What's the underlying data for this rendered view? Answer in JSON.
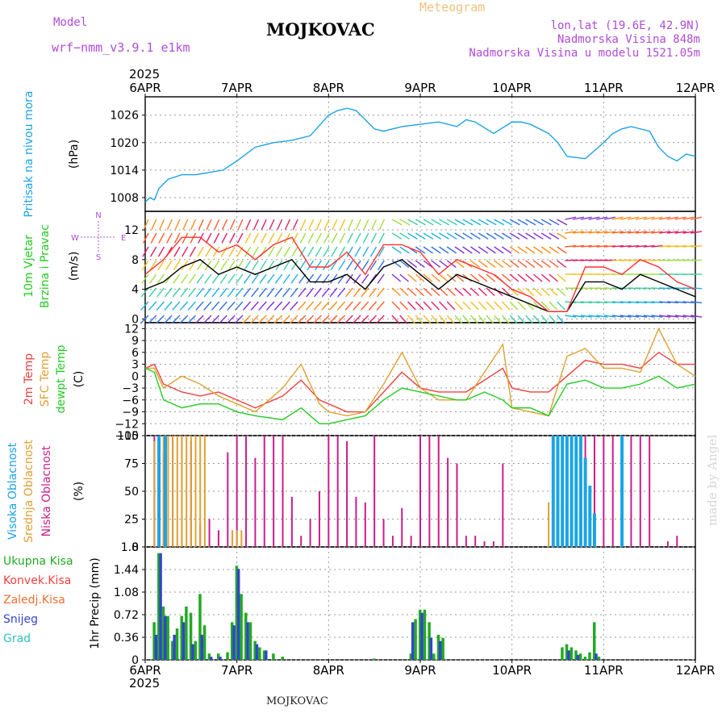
{
  "header": {
    "model_label": "Model",
    "model_name": "wrf−nmm_v3.9.1  e1km",
    "station": "MOJKOVAC",
    "meteogram": "Meteogram",
    "lonlat": "lon,lat (19.6E, 42.9N)",
    "elevation": "Nadmorska Visina 848m",
    "model_elevation": "Nadmorska Visina u modelu 1521.05m",
    "year_top": "2025",
    "year_bottom": "2025",
    "footer_station": "MOJKOVAC",
    "credit": "made by Angel"
  },
  "x_axis": {
    "labels": [
      "6APR",
      "7APR",
      "8APR",
      "9APR",
      "10APR",
      "11APR",
      "12APR"
    ]
  },
  "colors": {
    "pressure": "#1ba3e6",
    "temp2m": "#f04040",
    "sfc_temp": "#e0a030",
    "dewpt": "#22cc22",
    "high_cloud": "#1ba3e6",
    "mid_cloud": "#e0a030",
    "low_cloud": "#cc1c8c",
    "precip_total": "#22aa22",
    "snow": "#3344cc",
    "wind_speed": "#000000",
    "gust": "#ff3030"
  },
  "chart_data": [
    {
      "type": "line",
      "panel": "pressure",
      "ylabel_main": "Pritisak na nivou mora",
      "ylabel_unit": "(hPa)",
      "yticks": [
        "1008",
        "1014",
        "1020",
        "1026"
      ],
      "ylim": [
        1005,
        1030
      ],
      "xlim_days": [
        0,
        6
      ],
      "series": [
        {
          "color": "#1ba3e6",
          "x": [
            0,
            0.05,
            0.1,
            0.15,
            0.25,
            0.4,
            0.55,
            0.7,
            0.85,
            1.0,
            1.2,
            1.4,
            1.6,
            1.8,
            2.0,
            2.1,
            2.2,
            2.3,
            2.4,
            2.5,
            2.6,
            2.8,
            3.0,
            3.2,
            3.4,
            3.5,
            3.6,
            3.8,
            4.0,
            4.1,
            4.2,
            4.4,
            4.5,
            4.6,
            4.8,
            5.0,
            5.1,
            5.2,
            5.3,
            5.5,
            5.6,
            5.7,
            5.8,
            5.9,
            6.0
          ],
          "y": [
            1007,
            1008,
            1007.5,
            1010,
            1012,
            1013,
            1013,
            1013.5,
            1014,
            1016,
            1019,
            1020,
            1020.5,
            1021.5,
            1026,
            1027,
            1027.5,
            1027,
            1025,
            1023,
            1022.5,
            1023.5,
            1024,
            1024.5,
            1023.5,
            1025,
            1024.5,
            1022,
            1024.5,
            1024.5,
            1024,
            1022,
            1020,
            1017,
            1016.5,
            1020,
            1022,
            1023,
            1023.5,
            1022.5,
            1019,
            1017,
            1016,
            1017.5,
            1017
          ]
        }
      ]
    },
    {
      "type": "line",
      "panel": "wind",
      "ylabel_main": "10m Vjetar",
      "ylabel_sub": "Brzina i Pravac",
      "ylabel_unit": "(m/s)",
      "compass": {
        "n": "N",
        "s": "S",
        "e": "E",
        "w": "W"
      },
      "yticks": [
        "0",
        "4",
        "8",
        "12"
      ],
      "ylim": [
        -0.5,
        14.5
      ],
      "series": [
        {
          "name": "speed",
          "color": "#000000",
          "x": [
            0,
            0.2,
            0.4,
            0.6,
            0.8,
            1.0,
            1.2,
            1.4,
            1.6,
            1.8,
            2.0,
            2.2,
            2.4,
            2.6,
            2.8,
            3.0,
            3.2,
            3.4,
            3.6,
            3.8,
            4.0,
            4.2,
            4.4,
            4.6,
            4.8,
            5.0,
            5.2,
            5.4,
            5.6,
            5.8,
            6.0
          ],
          "y": [
            4,
            5,
            7,
            8,
            6,
            7,
            6,
            7,
            8,
            5,
            5,
            6,
            4,
            7,
            8,
            6,
            4,
            6,
            5,
            4,
            3,
            2,
            1,
            1,
            5,
            5,
            4,
            6,
            5,
            4,
            3
          ]
        },
        {
          "name": "gust",
          "color": "#ff3030",
          "x": [
            0,
            0.2,
            0.4,
            0.6,
            0.8,
            1.0,
            1.2,
            1.4,
            1.6,
            1.8,
            2.0,
            2.2,
            2.4,
            2.6,
            2.8,
            3.0,
            3.2,
            3.4,
            3.6,
            3.8,
            4.0,
            4.2,
            4.4,
            4.6,
            4.8,
            5.0,
            5.2,
            5.4,
            5.6,
            5.8,
            6.0
          ],
          "y": [
            6,
            8,
            11,
            11,
            9,
            10,
            8,
            10,
            11,
            7,
            7,
            9,
            6,
            10,
            10,
            9,
            6,
            8,
            7,
            6,
            4,
            3,
            1,
            1,
            7,
            7,
            6,
            8,
            7,
            5,
            4
          ]
        }
      ]
    },
    {
      "type": "line",
      "panel": "temperature",
      "ylabel_lines": [
        "2m Temp",
        "SFC Temp",
        "dewpt Temp"
      ],
      "ylabel_unit": "(C)",
      "yticks": [
        "−15",
        "−12",
        "−9",
        "−6",
        "−3",
        "0",
        "3",
        "6",
        "9",
        "12"
      ],
      "ylim": [
        -15,
        13.5
      ],
      "series": [
        {
          "name": "2m Temp",
          "color": "#f04040",
          "x": [
            0,
            0.1,
            0.2,
            0.4,
            0.6,
            0.8,
            1.0,
            1.2,
            1.5,
            1.7,
            1.9,
            2.0,
            2.2,
            2.4,
            2.6,
            2.8,
            3.0,
            3.2,
            3.4,
            3.5,
            3.7,
            3.9,
            4.0,
            4.2,
            4.4,
            4.6,
            4.8,
            5.0,
            5.2,
            5.4,
            5.6,
            5.8,
            6.0
          ],
          "y": [
            2,
            3,
            -2,
            -4,
            -5,
            -4,
            -6,
            -8,
            -5,
            -1,
            -6,
            -7,
            -9,
            -9,
            -4,
            1,
            -3,
            -4,
            -4,
            -4,
            -1,
            2,
            -3,
            -4,
            -4,
            0,
            4,
            3,
            3,
            2,
            6,
            3,
            3
          ]
        },
        {
          "name": "SFC Temp",
          "color": "#e0a030",
          "x": [
            0,
            0.1,
            0.2,
            0.4,
            0.6,
            0.8,
            1.0,
            1.2,
            1.5,
            1.7,
            1.9,
            2.0,
            2.2,
            2.4,
            2.6,
            2.8,
            3.0,
            3.2,
            3.4,
            3.5,
            3.7,
            3.9,
            4.0,
            4.2,
            4.4,
            4.6,
            4.8,
            5.0,
            5.2,
            5.4,
            5.6,
            5.8,
            6.0
          ],
          "y": [
            2,
            2,
            -3,
            0,
            -2,
            -5,
            -7,
            -9,
            -3,
            3,
            -7,
            -9,
            -10,
            -9,
            -2,
            6,
            -3,
            -6,
            -6,
            -6,
            1,
            8,
            -8,
            -9,
            -10,
            5,
            7,
            2,
            2,
            1,
            12,
            3,
            0
          ]
        },
        {
          "name": "dewpt Temp",
          "color": "#22cc22",
          "x": [
            0,
            0.1,
            0.2,
            0.4,
            0.6,
            0.8,
            1.0,
            1.2,
            1.5,
            1.7,
            1.9,
            2.0,
            2.2,
            2.4,
            2.6,
            2.8,
            3.0,
            3.2,
            3.4,
            3.5,
            3.7,
            3.9,
            4.0,
            4.2,
            4.4,
            4.6,
            4.8,
            5.0,
            5.2,
            5.4,
            5.6,
            5.8,
            6.0
          ],
          "y": [
            2,
            1,
            -6,
            -8,
            -7,
            -7,
            -9,
            -10,
            -11,
            -8,
            -12,
            -12,
            -11,
            -10,
            -6,
            -3,
            -4,
            -5,
            -6,
            -6,
            -4,
            -6,
            -8,
            -8,
            -10,
            -2,
            -1,
            -3,
            -3,
            -2,
            0,
            -3,
            -2
          ]
        }
      ]
    },
    {
      "type": "bar",
      "panel": "clouds",
      "ylabel_lines": [
        "Visoka Oblacnost",
        "Srednja Oblacnost",
        "Niska Oblacnost"
      ],
      "ylabel_unit": "(%)",
      "yticks": [
        "0",
        "25",
        "50",
        "75",
        "100"
      ],
      "ylim": [
        0,
        100
      ],
      "series": [
        {
          "name": "Niska",
          "color": "#cc1c8c",
          "x": [
            0.1,
            0.2,
            0.3,
            0.4,
            0.5,
            0.6,
            0.7,
            0.8,
            0.9,
            1.0,
            1.1,
            1.2,
            1.3,
            1.4,
            1.5,
            1.6,
            1.7,
            1.8,
            1.9,
            2.0,
            2.1,
            2.2,
            2.3,
            2.4,
            2.5,
            2.6,
            2.7,
            2.8,
            2.9,
            3.0,
            3.1,
            3.2,
            3.3,
            3.4,
            3.5,
            3.6,
            3.7,
            3.8,
            3.9,
            4.0,
            4.1,
            4.2,
            4.3,
            4.4,
            4.5,
            4.6,
            4.7,
            4.8,
            4.9,
            5.0,
            5.1,
            5.2,
            5.3,
            5.4,
            5.5,
            5.6,
            5.7,
            5.8,
            5.9
          ],
          "y": [
            100,
            85,
            100,
            100,
            95,
            20,
            25,
            15,
            85,
            100,
            100,
            80,
            100,
            100,
            100,
            45,
            10,
            25,
            50,
            100,
            100,
            95,
            45,
            40,
            100,
            25,
            10,
            35,
            10,
            100,
            100,
            100,
            80,
            75,
            10,
            10,
            5,
            5,
            75,
            0,
            0,
            0,
            0,
            0,
            0,
            0,
            0,
            100,
            100,
            100,
            100,
            95,
            100,
            100,
            100,
            0,
            5,
            10,
            0
          ]
        },
        {
          "name": "Srednja",
          "color": "#e0a030",
          "x": [
            0.1,
            0.15,
            0.2,
            0.25,
            0.3,
            0.35,
            0.4,
            0.45,
            0.5,
            0.55,
            0.6,
            0.65,
            0.95,
            1.0,
            1.05,
            4.4,
            4.45,
            4.5,
            4.55,
            4.6,
            4.65,
            4.7,
            4.75
          ],
          "y": [
            95,
            100,
            100,
            100,
            100,
            100,
            100,
            100,
            100,
            100,
            100,
            100,
            15,
            15,
            15,
            40,
            100,
            100,
            100,
            100,
            100,
            100,
            100
          ]
        },
        {
          "name": "Visoka",
          "color": "#1ba3e6",
          "x": [
            0.15,
            0.22,
            4.45,
            4.5,
            4.55,
            4.6,
            4.65,
            4.7,
            4.75,
            4.8,
            4.85,
            4.9,
            5.2
          ],
          "y": [
            100,
            100,
            100,
            100,
            100,
            100,
            100,
            100,
            100,
            80,
            55,
            30,
            100
          ]
        }
      ]
    },
    {
      "type": "bar",
      "panel": "precip",
      "ylabel_lines": [
        "Ukupna Kisa",
        "Konvek.Kisa",
        "Zaledj.Kisa",
        "Snijeg",
        "Grad"
      ],
      "ylabel_unit": "1hr Precip (mm)",
      "yticks": [
        "0",
        "0.36",
        "0.72",
        "1.08",
        "1.44",
        "1.8"
      ],
      "ylim": [
        0,
        1.8
      ],
      "series": [
        {
          "name": "Ukupna Kisa",
          "color": "#22aa22",
          "x": [
            0.1,
            0.15,
            0.2,
            0.25,
            0.3,
            0.35,
            0.4,
            0.45,
            0.5,
            0.55,
            0.6,
            0.65,
            0.7,
            0.8,
            0.9,
            0.95,
            1.0,
            1.05,
            1.1,
            1.15,
            1.2,
            1.25,
            1.3,
            1.4,
            1.5,
            2.5,
            2.9,
            2.95,
            3.0,
            3.05,
            3.1,
            3.15,
            3.2,
            3.25,
            4.55,
            4.6,
            4.65,
            4.7,
            4.75,
            4.8,
            4.85,
            4.9,
            4.95
          ],
          "y": [
            0.6,
            1.7,
            0.85,
            0.7,
            0.3,
            0.5,
            0.7,
            0.85,
            0.75,
            0.3,
            1.05,
            0.55,
            0.1,
            0.1,
            0.12,
            0.6,
            1.5,
            1.05,
            0.75,
            0.6,
            0.3,
            0.2,
            0.15,
            0.1,
            0.05,
            0.02,
            0.1,
            0.65,
            0.8,
            0.8,
            0.6,
            0.1,
            0.4,
            0.35,
            0.2,
            0.25,
            0.2,
            0.15,
            0.1,
            0.05,
            0.12,
            0.6,
            0.05
          ]
        },
        {
          "name": "Snijeg",
          "color": "#3344cc",
          "x": [
            0.12,
            0.17,
            0.22,
            0.32,
            0.42,
            0.52,
            0.62,
            0.72,
            0.82,
            0.97,
            1.02,
            1.12,
            1.22,
            1.32,
            2.92,
            3.02,
            3.12,
            3.22,
            4.62,
            4.72,
            4.92
          ],
          "y": [
            0.4,
            1.7,
            0.7,
            0.4,
            0.6,
            0.25,
            0.4,
            0.05,
            0.05,
            0.55,
            1.45,
            0.6,
            0.25,
            0.15,
            0.6,
            0.75,
            0.35,
            0.3,
            0.15,
            0.08,
            0.1
          ]
        }
      ]
    }
  ]
}
